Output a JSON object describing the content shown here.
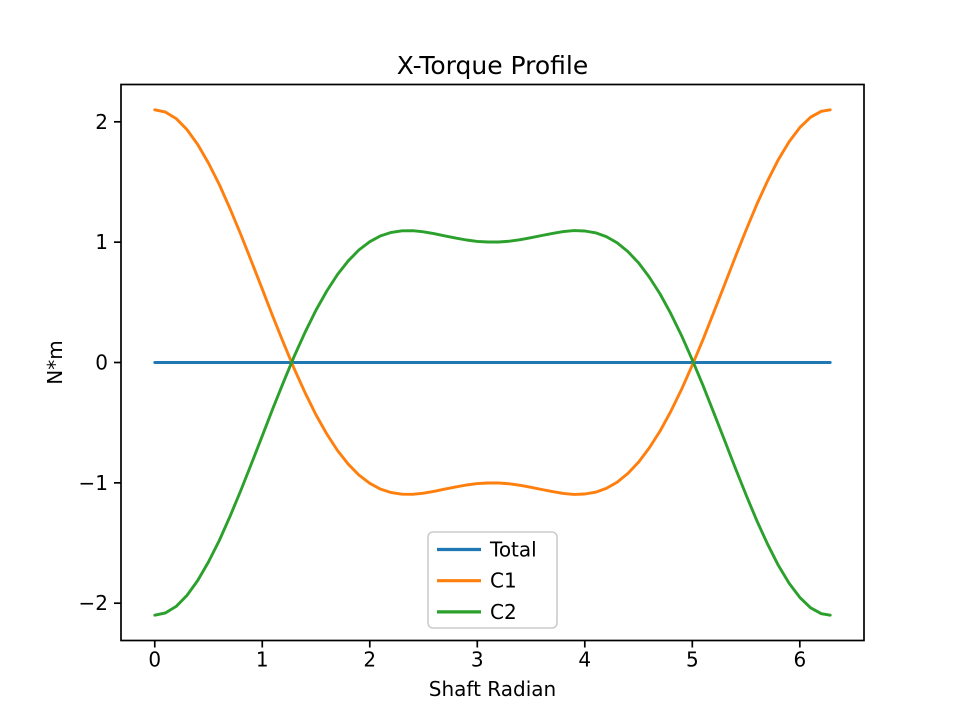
{
  "figure": {
    "title": "X-Torque Profile",
    "background_color": "#ffffff"
  },
  "chart_data": {
    "type": "line",
    "title": "X-Torque Profile",
    "xlabel": "Shaft Radian",
    "ylabel": "N*m",
    "xlim": [
      -0.314,
      6.597
    ],
    "ylim": [
      -2.31,
      2.31
    ],
    "xticks": [
      0,
      1,
      2,
      3,
      4,
      5,
      6
    ],
    "yticks": [
      -2,
      -1,
      0,
      1,
      2
    ],
    "grid": false,
    "legend": {
      "position": "lower center",
      "entries": [
        "Total",
        "C1",
        "C2"
      ]
    },
    "spine_color": "#000000",
    "legend_edge_color": "#cccccc",
    "x": [
      0.0,
      0.1,
      0.2,
      0.3,
      0.4,
      0.5,
      0.6,
      0.7,
      0.8,
      0.9,
      1.0,
      1.1,
      1.2,
      1.3,
      1.4,
      1.5,
      1.6,
      1.7,
      1.8,
      1.9,
      2.0,
      2.1,
      2.2,
      2.3,
      2.4,
      2.5,
      2.6,
      2.7,
      2.8,
      2.9,
      3.0,
      3.1,
      3.2,
      3.3,
      3.4,
      3.5,
      3.6,
      3.7,
      3.8,
      3.9,
      4.0,
      4.1,
      4.2,
      4.3,
      4.4,
      4.5,
      4.6,
      4.7,
      4.8,
      4.9,
      5.0,
      5.1,
      5.2,
      5.3,
      5.4,
      5.5,
      5.6,
      5.7,
      5.8,
      5.9,
      6.0,
      6.1,
      6.2,
      6.283
    ],
    "series": [
      {
        "name": "Total",
        "color": "#1f77b4",
        "values": [
          0,
          0,
          0,
          0,
          0,
          0,
          0,
          0,
          0,
          0,
          0,
          0,
          0,
          0,
          0,
          0,
          0,
          0,
          0,
          0,
          0,
          0,
          0,
          0,
          0,
          0,
          0,
          0,
          0,
          0,
          0,
          0,
          0,
          0,
          0,
          0,
          0,
          0,
          0,
          0,
          0,
          0,
          0,
          0,
          0,
          0,
          0,
          0,
          0,
          0,
          0,
          0,
          0,
          0,
          0,
          0,
          0,
          0,
          0,
          0,
          0,
          0,
          0,
          0
        ]
      },
      {
        "name": "C1",
        "color": "#ff7f0e",
        "values": [
          2.1,
          2.081,
          2.026,
          1.935,
          1.811,
          1.657,
          1.479,
          1.279,
          1.064,
          0.839,
          0.609,
          0.379,
          0.156,
          -0.057,
          -0.255,
          -0.435,
          -0.594,
          -0.731,
          -0.845,
          -0.936,
          -1.004,
          -1.052,
          -1.081,
          -1.094,
          -1.095,
          -1.086,
          -1.07,
          -1.052,
          -1.034,
          -1.018,
          -1.006,
          -1.001,
          -1.001,
          -1.008,
          -1.02,
          -1.037,
          -1.055,
          -1.073,
          -1.088,
          -1.096,
          -1.093,
          -1.078,
          -1.046,
          -0.995,
          -0.922,
          -0.828,
          -0.71,
          -0.569,
          -0.406,
          -0.223,
          -0.022,
          0.193,
          0.418,
          0.647,
          0.877,
          1.101,
          1.314,
          1.51,
          1.685,
          1.834,
          1.952,
          2.038,
          2.087,
          2.1
        ]
      },
      {
        "name": "C2",
        "color": "#2ca02c",
        "values": [
          -2.1,
          -2.081,
          -2.026,
          -1.935,
          -1.811,
          -1.657,
          -1.479,
          -1.279,
          -1.064,
          -0.839,
          -0.609,
          -0.379,
          -0.156,
          0.057,
          0.255,
          0.435,
          0.594,
          0.731,
          0.845,
          0.936,
          1.004,
          1.052,
          1.081,
          1.094,
          1.095,
          1.086,
          1.07,
          1.052,
          1.034,
          1.018,
          1.006,
          1.001,
          1.001,
          1.008,
          1.02,
          1.037,
          1.055,
          1.073,
          1.088,
          1.096,
          1.093,
          1.078,
          1.046,
          0.995,
          0.922,
          0.828,
          0.71,
          0.569,
          0.406,
          0.223,
          0.022,
          -0.193,
          -0.418,
          -0.647,
          -0.877,
          -1.101,
          -1.314,
          -1.51,
          -1.685,
          -1.834,
          -1.952,
          -2.038,
          -2.087,
          -2.1
        ]
      }
    ]
  }
}
